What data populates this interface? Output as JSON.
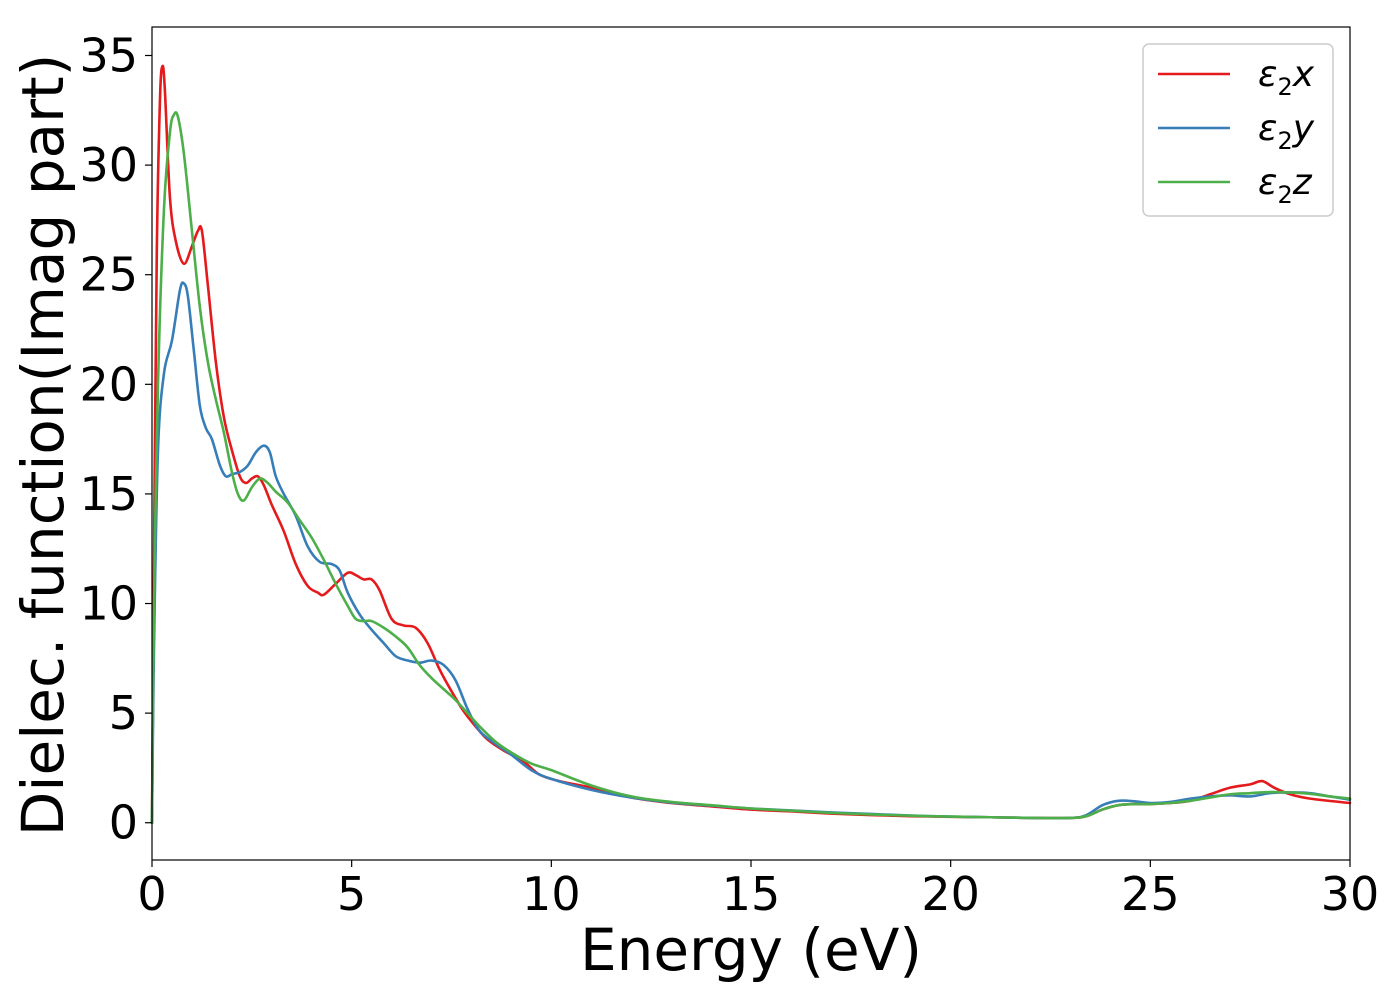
{
  "chart_data": {
    "type": "line",
    "xlabel": "Energy (eV)",
    "ylabel": "Dielec. function(Imag part)",
    "xlim": [
      0,
      30
    ],
    "ylim": [
      -1.7,
      36.3
    ],
    "xticks": [
      0,
      5,
      10,
      15,
      20,
      25,
      30
    ],
    "yticks": [
      0,
      5,
      10,
      15,
      20,
      25,
      30,
      35
    ],
    "grid": false,
    "legend_position": "top-right",
    "series": [
      {
        "name": "ε₂x",
        "legend_base": "ε",
        "legend_sub": "2",
        "legend_suffix": "x",
        "color": "#e41a1c",
        "points": [
          [
            0,
            0
          ],
          [
            0.05,
            12
          ],
          [
            0.12,
            26
          ],
          [
            0.2,
            33
          ],
          [
            0.26,
            34.5
          ],
          [
            0.32,
            33.5
          ],
          [
            0.45,
            28.5
          ],
          [
            0.6,
            26.5
          ],
          [
            0.8,
            25.5
          ],
          [
            1.0,
            26.3
          ],
          [
            1.15,
            27.0
          ],
          [
            1.25,
            27.0
          ],
          [
            1.4,
            24.5
          ],
          [
            1.6,
            21
          ],
          [
            1.8,
            18.5
          ],
          [
            2.0,
            17
          ],
          [
            2.2,
            15.8
          ],
          [
            2.35,
            15.5
          ],
          [
            2.5,
            15.7
          ],
          [
            2.65,
            15.8
          ],
          [
            2.8,
            15.4
          ],
          [
            3.0,
            14.5
          ],
          [
            3.3,
            13.3
          ],
          [
            3.6,
            11.8
          ],
          [
            3.9,
            10.8
          ],
          [
            4.15,
            10.5
          ],
          [
            4.3,
            10.4
          ],
          [
            4.6,
            10.9
          ],
          [
            4.9,
            11.4
          ],
          [
            5.1,
            11.3
          ],
          [
            5.3,
            11.1
          ],
          [
            5.5,
            11.1
          ],
          [
            5.7,
            10.6
          ],
          [
            6.0,
            9.3
          ],
          [
            6.3,
            9.0
          ],
          [
            6.6,
            8.9
          ],
          [
            6.9,
            8.2
          ],
          [
            7.2,
            7.0
          ],
          [
            7.5,
            6.0
          ],
          [
            7.8,
            5.1
          ],
          [
            8.1,
            4.4
          ],
          [
            8.4,
            3.8
          ],
          [
            8.8,
            3.3
          ],
          [
            9.3,
            2.8
          ],
          [
            9.7,
            2.2
          ],
          [
            10.2,
            1.9
          ],
          [
            11,
            1.6
          ],
          [
            12,
            1.15
          ],
          [
            13,
            0.9
          ],
          [
            14,
            0.75
          ],
          [
            15,
            0.6
          ],
          [
            16,
            0.52
          ],
          [
            17,
            0.42
          ],
          [
            18,
            0.35
          ],
          [
            19,
            0.3
          ],
          [
            20,
            0.27
          ],
          [
            21,
            0.25
          ],
          [
            22,
            0.22
          ],
          [
            23,
            0.22
          ],
          [
            23.4,
            0.3
          ],
          [
            23.8,
            0.6
          ],
          [
            24.2,
            0.8
          ],
          [
            24.6,
            0.85
          ],
          [
            25,
            0.85
          ],
          [
            25.5,
            0.9
          ],
          [
            26,
            1.0
          ],
          [
            26.5,
            1.3
          ],
          [
            27,
            1.6
          ],
          [
            27.5,
            1.75
          ],
          [
            27.8,
            1.9
          ],
          [
            28.1,
            1.6
          ],
          [
            28.5,
            1.3
          ],
          [
            29,
            1.1
          ],
          [
            30,
            0.9
          ]
        ]
      },
      {
        "name": "ε₂y",
        "legend_base": "ε",
        "legend_sub": "2",
        "legend_suffix": "y",
        "color": "#377eb8",
        "points": [
          [
            0,
            0
          ],
          [
            0.05,
            8
          ],
          [
            0.15,
            17
          ],
          [
            0.3,
            20.5
          ],
          [
            0.5,
            22
          ],
          [
            0.7,
            24.3
          ],
          [
            0.8,
            24.6
          ],
          [
            0.9,
            24
          ],
          [
            1.05,
            21.5
          ],
          [
            1.2,
            19
          ],
          [
            1.35,
            18
          ],
          [
            1.5,
            17.5
          ],
          [
            1.7,
            16.3
          ],
          [
            1.85,
            15.8
          ],
          [
            2.0,
            15.9
          ],
          [
            2.2,
            16.0
          ],
          [
            2.4,
            16.3
          ],
          [
            2.6,
            16.9
          ],
          [
            2.8,
            17.2
          ],
          [
            2.95,
            16.9
          ],
          [
            3.1,
            15.8
          ],
          [
            3.3,
            15.0
          ],
          [
            3.6,
            14.0
          ],
          [
            3.9,
            12.6
          ],
          [
            4.2,
            11.9
          ],
          [
            4.5,
            11.8
          ],
          [
            4.7,
            11.5
          ],
          [
            4.9,
            10.5
          ],
          [
            5.2,
            9.5
          ],
          [
            5.5,
            8.8
          ],
          [
            5.8,
            8.2
          ],
          [
            6.1,
            7.6
          ],
          [
            6.4,
            7.4
          ],
          [
            6.7,
            7.3
          ],
          [
            7.0,
            7.4
          ],
          [
            7.3,
            7.2
          ],
          [
            7.6,
            6.5
          ],
          [
            7.9,
            5.2
          ],
          [
            8.2,
            4.2
          ],
          [
            8.6,
            3.6
          ],
          [
            9.0,
            3.1
          ],
          [
            9.5,
            2.4
          ],
          [
            10,
            2.0
          ],
          [
            11,
            1.5
          ],
          [
            12,
            1.15
          ],
          [
            13,
            0.92
          ],
          [
            14,
            0.78
          ],
          [
            15,
            0.65
          ],
          [
            16,
            0.56
          ],
          [
            17,
            0.47
          ],
          [
            18,
            0.4
          ],
          [
            19,
            0.33
          ],
          [
            20,
            0.28
          ],
          [
            21,
            0.25
          ],
          [
            22,
            0.22
          ],
          [
            23,
            0.22
          ],
          [
            23.4,
            0.35
          ],
          [
            23.8,
            0.8
          ],
          [
            24.2,
            1.0
          ],
          [
            24.6,
            0.98
          ],
          [
            25,
            0.9
          ],
          [
            25.5,
            0.95
          ],
          [
            26,
            1.1
          ],
          [
            26.5,
            1.2
          ],
          [
            27,
            1.25
          ],
          [
            27.5,
            1.2
          ],
          [
            28,
            1.35
          ],
          [
            28.5,
            1.38
          ],
          [
            29,
            1.35
          ],
          [
            29.5,
            1.2
          ],
          [
            30,
            1.05
          ]
        ]
      },
      {
        "name": "ε₂z",
        "legend_base": "ε",
        "legend_sub": "2",
        "legend_suffix": "z",
        "color": "#4daf4a",
        "points": [
          [
            0,
            0
          ],
          [
            0.05,
            10
          ],
          [
            0.15,
            20
          ],
          [
            0.3,
            28
          ],
          [
            0.45,
            31.5
          ],
          [
            0.55,
            32.3
          ],
          [
            0.65,
            32.2
          ],
          [
            0.8,
            30.5
          ],
          [
            1.0,
            27.0
          ],
          [
            1.2,
            23.5
          ],
          [
            1.4,
            21.0
          ],
          [
            1.6,
            19.3
          ],
          [
            1.8,
            17.8
          ],
          [
            2.0,
            16.0
          ],
          [
            2.15,
            15.0
          ],
          [
            2.3,
            14.7
          ],
          [
            2.5,
            15.3
          ],
          [
            2.7,
            15.7
          ],
          [
            2.9,
            15.5
          ],
          [
            3.1,
            15.1
          ],
          [
            3.4,
            14.6
          ],
          [
            3.7,
            13.8
          ],
          [
            4.0,
            13.0
          ],
          [
            4.3,
            12.0
          ],
          [
            4.6,
            10.9
          ],
          [
            4.9,
            9.9
          ],
          [
            5.1,
            9.3
          ],
          [
            5.3,
            9.2
          ],
          [
            5.5,
            9.2
          ],
          [
            5.8,
            8.9
          ],
          [
            6.1,
            8.5
          ],
          [
            6.4,
            8.0
          ],
          [
            6.7,
            7.2
          ],
          [
            7.0,
            6.6
          ],
          [
            7.3,
            6.1
          ],
          [
            7.6,
            5.6
          ],
          [
            7.9,
            5.0
          ],
          [
            8.2,
            4.4
          ],
          [
            8.6,
            3.7
          ],
          [
            9.0,
            3.2
          ],
          [
            9.5,
            2.7
          ],
          [
            10,
            2.4
          ],
          [
            11,
            1.7
          ],
          [
            12,
            1.2
          ],
          [
            13,
            0.95
          ],
          [
            14,
            0.8
          ],
          [
            15,
            0.65
          ],
          [
            16,
            0.55
          ],
          [
            17,
            0.45
          ],
          [
            18,
            0.38
          ],
          [
            19,
            0.32
          ],
          [
            20,
            0.28
          ],
          [
            21,
            0.25
          ],
          [
            22,
            0.22
          ],
          [
            23,
            0.22
          ],
          [
            23.4,
            0.3
          ],
          [
            23.8,
            0.6
          ],
          [
            24.2,
            0.8
          ],
          [
            24.6,
            0.85
          ],
          [
            25,
            0.85
          ],
          [
            25.5,
            0.9
          ],
          [
            26,
            1.0
          ],
          [
            26.5,
            1.15
          ],
          [
            27,
            1.3
          ],
          [
            27.5,
            1.35
          ],
          [
            28,
            1.4
          ],
          [
            28.5,
            1.38
          ],
          [
            29,
            1.32
          ],
          [
            29.5,
            1.2
          ],
          [
            30,
            1.1
          ]
        ]
      }
    ]
  }
}
